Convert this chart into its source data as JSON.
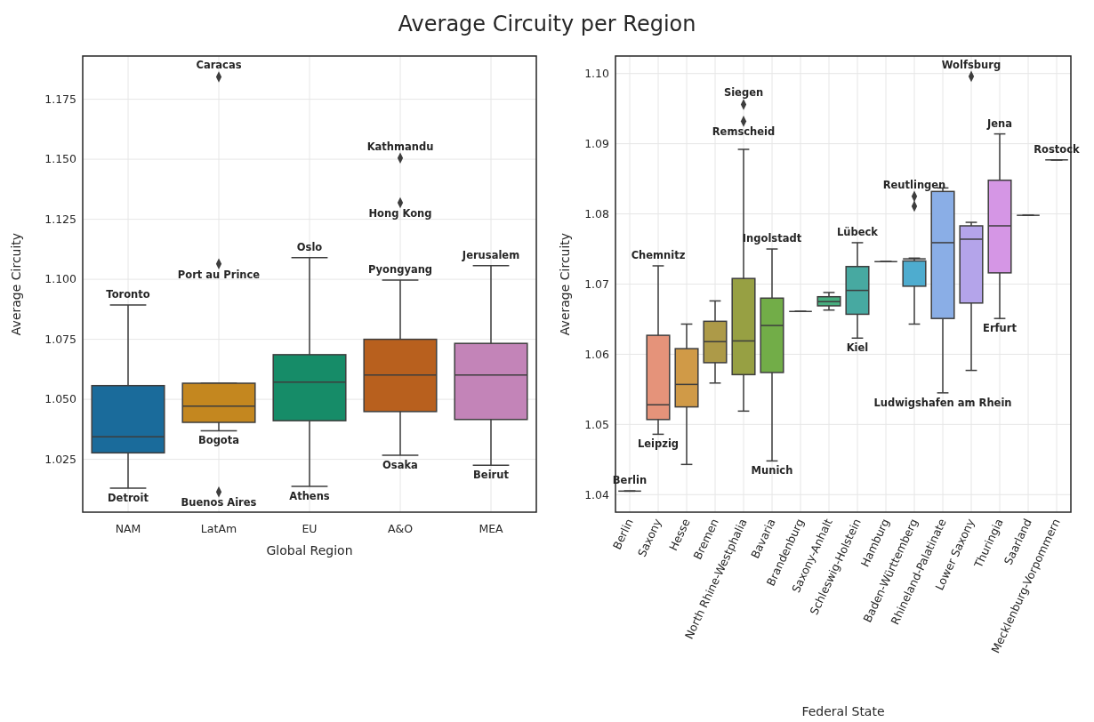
{
  "chart_data": [
    {
      "type": "box",
      "title": "Average Circuity per Region",
      "xlabel": "Global Region",
      "ylabel": "Average Circuity",
      "categories": [
        "NAM",
        "LatAm",
        "EU",
        "A&O",
        "MEA"
      ],
      "colors": [
        "#1a6b9b",
        "#c4871f",
        "#168c68",
        "#b8601e",
        "#c384b8"
      ],
      "boxes": [
        {
          "low": 1.013,
          "q1": 1.0277,
          "median": 1.0344,
          "q3": 1.0557,
          "high": 1.0893
        },
        {
          "low": 1.0369,
          "q1": 1.0404,
          "median": 1.0472,
          "q3": 1.0567,
          "high": 1.0567,
          "outliers": [
            1.1843,
            1.1064,
            1.0114
          ]
        },
        {
          "low": 1.0137,
          "q1": 1.0411,
          "median": 1.0572,
          "q3": 1.0686,
          "high": 1.109
        },
        {
          "low": 1.0267,
          "q1": 1.0449,
          "median": 1.0601,
          "q3": 1.075,
          "high": 1.0997,
          "outliers": [
            1.1505,
            1.1319
          ]
        },
        {
          "low": 1.0225,
          "q1": 1.0416,
          "median": 1.0601,
          "q3": 1.0733,
          "high": 1.1057
        }
      ],
      "ylim": [
        1.003,
        1.193
      ],
      "yticks": [
        {
          "value": 1.025,
          "label": "1.025"
        },
        {
          "value": 1.05,
          "label": "1.050"
        },
        {
          "value": 1.075,
          "label": "1.075"
        },
        {
          "value": 1.1,
          "label": "1.100"
        },
        {
          "value": 1.125,
          "label": "1.125"
        },
        {
          "value": 1.15,
          "label": "1.150"
        },
        {
          "value": 1.175,
          "label": "1.175"
        }
      ],
      "grid": true,
      "marker": "diamond",
      "annotations": [
        {
          "text": "Toronto",
          "x": "NAM",
          "y": 1.0893
        },
        {
          "text": "Detroit",
          "x": "NAM",
          "y": 1.013
        },
        "Caracas",
        "Port au Prince",
        {
          "text": "Bogota",
          "x": "LatAm",
          "y": 1.0369
        },
        "Buenos Aires",
        {
          "text": "Oslo",
          "x": "EU",
          "y": 1.109
        },
        {
          "text": "Athens",
          "x": "EU",
          "y": 1.0137
        },
        "Kathmandu",
        "Hong Kong",
        {
          "text": "Pyongyang",
          "x": "A&O",
          "y": 1.0997
        },
        {
          "text": "Osaka",
          "x": "A&O",
          "y": 1.0267
        },
        {
          "text": "Jerusalem",
          "x": "MEA",
          "y": 1.1057
        },
        {
          "text": "Beirut",
          "x": "MEA",
          "y": 1.0225
        }
      ]
    },
    {
      "type": "box",
      "xlabel": "Federal State",
      "ylabel": "Average Circuity",
      "categories": [
        "Berlin",
        "Saxony",
        "Hesse",
        "Bremen",
        "North Rhine-Westphalia",
        "Bavaria",
        "Brandenburg",
        "Saxony-Anhalt",
        "Schleswig-Holstein",
        "Hamburg",
        "Baden-Württemberg",
        "Rhineland-Palatinate",
        "Lower Saxony",
        "Thuringia",
        "Saarland",
        "Mecklenburg-Vorpommern"
      ],
      "colors": [
        null,
        "#e5937a",
        "#d09a47",
        "#ad9a48",
        "#97a043",
        "#72ad48",
        null,
        "#47ae7f",
        "#47a9a1",
        null,
        "#4eaccf",
        "#8aaee6",
        "#b4a4ea",
        "#d596e5",
        null,
        null
      ],
      "boxes": [
        {
          "low": 1.0405,
          "q1": 1.0405,
          "median": 1.0405,
          "q3": 1.0405,
          "high": 1.0405
        },
        {
          "low": 1.0486,
          "q1": 1.0507,
          "median": 1.0528,
          "q3": 1.0627,
          "high": 1.0726
        },
        {
          "low": 1.0443,
          "q1": 1.0525,
          "median": 1.0557,
          "q3": 1.0608,
          "high": 1.0643
        },
        {
          "low": 1.0559,
          "q1": 1.0588,
          "median": 1.0618,
          "q3": 1.0647,
          "high": 1.0676
        },
        {
          "low": 1.0519,
          "q1": 1.0571,
          "median": 1.0619,
          "q3": 1.0708,
          "high": 1.0892,
          "outliers": [
            1.0956,
            1.0932
          ]
        },
        {
          "low": 1.0448,
          "q1": 1.0574,
          "median": 1.0641,
          "q3": 1.068,
          "high": 1.075
        },
        {
          "low": 1.0661,
          "q1": 1.0661,
          "median": 1.0661,
          "q3": 1.0661,
          "high": 1.0661
        },
        {
          "low": 1.0663,
          "q1": 1.0669,
          "median": 1.0675,
          "q3": 1.0682,
          "high": 1.0688
        },
        {
          "low": 1.0623,
          "q1": 1.0657,
          "median": 1.0691,
          "q3": 1.0725,
          "high": 1.0759
        },
        {
          "low": 1.0732,
          "q1": 1.0732,
          "median": 1.0732,
          "q3": 1.0732,
          "high": 1.0732
        },
        {
          "low": 1.0643,
          "q1": 1.0697,
          "median": 1.0736,
          "q3": 1.0733,
          "high": 1.0737,
          "outliers": [
            1.0825,
            1.0811
          ]
        },
        {
          "low": 1.0545,
          "q1": 1.0651,
          "median": 1.0759,
          "q3": 1.0832,
          "high": 1.0837
        },
        {
          "low": 1.0577,
          "q1": 1.0673,
          "median": 1.0764,
          "q3": 1.0783,
          "high": 1.0788,
          "outliers": [
            1.0996
          ]
        },
        {
          "low": 1.0651,
          "q1": 1.0716,
          "median": 1.0783,
          "q3": 1.0848,
          "high": 1.0914
        },
        {
          "low": 1.0798,
          "q1": 1.0798,
          "median": 1.0798,
          "q3": 1.0798,
          "high": 1.0798
        },
        {
          "low": 1.0877,
          "q1": 1.0877,
          "median": 1.0877,
          "q3": 1.0877,
          "high": 1.0877
        }
      ],
      "ylim": [
        1.0375,
        1.1025
      ],
      "yticks": [
        1.04,
        1.05,
        1.06,
        1.07,
        1.08,
        1.09,
        {
          "value": 1.1,
          "label": "1.10"
        }
      ],
      "grid": true,
      "marker": "diamond",
      "annotations": [
        {
          "text": "Berlin",
          "x": "Berlin",
          "y": 1.0405
        },
        {
          "text": "Chemnitz",
          "x": "Saxony",
          "y": 1.0726
        },
        {
          "text": "Leipzig",
          "x": "Saxony",
          "y": 1.0486
        },
        "Siegen",
        "Remscheid",
        {
          "text": "Ingolstadt",
          "x": "Bavaria",
          "y": 1.075
        },
        {
          "text": "Munich",
          "x": "Bavaria",
          "y": 1.0448
        },
        {
          "text": "Lübeck",
          "x": "Schleswig-Holstein",
          "y": 1.0759
        },
        {
          "text": "Kiel",
          "x": "Schleswig-Holstein",
          "y": 1.0623
        },
        "Reutlingen",
        {
          "text": "Ludwigshafen am Rhein",
          "x": "Rhineland-Palatinate",
          "y": 1.0545
        },
        "Wolfsburg",
        {
          "text": "Jena",
          "x": "Thuringia",
          "y": 1.0914
        },
        {
          "text": "Erfurt",
          "x": "Thuringia",
          "y": 1.0651
        },
        {
          "text": "Rostock",
          "x": "Mecklenburg-Vorpommern",
          "y": 1.0877
        }
      ]
    }
  ]
}
